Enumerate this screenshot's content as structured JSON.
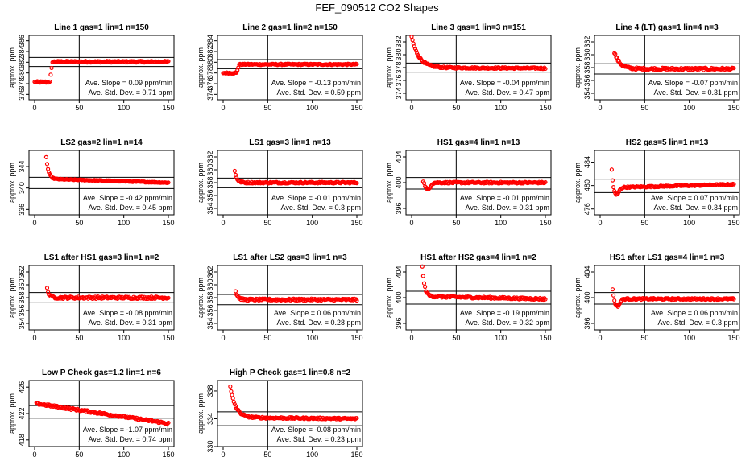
{
  "figure_title": "FEF_090512  CO2 Shapes",
  "colors": {
    "points": "#ff0000",
    "axes": "#000000"
  },
  "chart_data": [
    {
      "type": "scatter",
      "title": "Line 1 gas=1 lin=1 n=150",
      "ylabel": "approx. ppm",
      "xlim": [
        0,
        150
      ],
      "ylim": [
        375,
        387
      ],
      "yticks": [
        376,
        378,
        380,
        382,
        384,
        386
      ],
      "xticks": [
        0,
        50,
        100,
        150
      ],
      "hlines": [
        382.9,
        381.2
      ],
      "vline": 50,
      "slope_label": "Ave. Slope =  0.09  ppm/min",
      "sd_label": "Ave. Std. Dev. =  0.71  ppm",
      "shape": {
        "start": 378.3,
        "jump_at": 20,
        "plateau": 382.1,
        "end": 382.1,
        "noise": 0.15
      }
    },
    {
      "type": "scatter",
      "title": "Line 2 gas=1 lin=2 n=150",
      "ylabel": "approx. ppm",
      "xlim": [
        0,
        150
      ],
      "ylim": [
        373,
        385
      ],
      "yticks": [
        374,
        376,
        378,
        380,
        382,
        384
      ],
      "xticks": [
        0,
        50,
        100,
        150
      ],
      "hlines": [
        380.5,
        378.8
      ],
      "vline": 50,
      "slope_label": "Ave. Slope =  -0.13  ppm/min",
      "sd_label": "Ave. Std. Dev. =  0.59  ppm",
      "shape": {
        "start": 378.0,
        "jump_at": 18,
        "plateau": 379.6,
        "end": 379.6,
        "noise": 0.12
      }
    },
    {
      "type": "scatter",
      "title": "Line 3 gas=1 lin=3 n=151",
      "ylabel": "approx. ppm",
      "xlim": [
        0,
        150
      ],
      "ylim": [
        373,
        383
      ],
      "yticks": [
        374,
        376,
        378,
        380,
        382
      ],
      "xticks": [
        0,
        50,
        100,
        150
      ],
      "hlines": [
        378.7,
        377.3
      ],
      "vline": 50,
      "slope_label": "Ave. Slope =  -0.04  ppm/min",
      "sd_label": "Ave. Std. Dev. =  0.47  ppm",
      "shape": {
        "start": 382.8,
        "decay": 8,
        "plateau": 378.0,
        "end": 377.9,
        "noise": 0.12
      }
    },
    {
      "type": "scatter",
      "title": "Line 4 (LT) gas=1 lin=4 n=3",
      "ylabel": "approx. ppm",
      "xlim": [
        0,
        150
      ],
      "ylim": [
        353,
        363
      ],
      "yticks": [
        354,
        356,
        358,
        360,
        362
      ],
      "xticks": [
        0,
        50,
        100,
        150
      ],
      "hlines": [
        358.6,
        357.0
      ],
      "vline": 50,
      "slope_label": "Ave. Slope =  -0.07  ppm/min",
      "sd_label": "Ave. Std. Dev. =  0.31  ppm",
      "shape": {
        "start": 360.4,
        "decay": 6,
        "plateau": 357.8,
        "end": 357.8,
        "noise": 0.18,
        "startx": 16
      }
    },
    {
      "type": "scatter",
      "title": "LS2 gas=2 lin=1 n=14",
      "ylabel": "approx. ppm",
      "xlim": [
        0,
        150
      ],
      "ylim": [
        335,
        347
      ],
      "yticks": [
        336,
        340,
        344
      ],
      "xticks": [
        0,
        50,
        100,
        150
      ],
      "hlines": [
        342.0,
        339.9
      ],
      "vline": 50,
      "slope_label": "Ave. Slope =  -0.42  ppm/min",
      "sd_label": "Ave. Std. Dev. =  0.45  ppm",
      "shape": {
        "start": 345.8,
        "plateau": 341.7,
        "end": 341.0,
        "noise": 0.08,
        "startx": 13
      }
    },
    {
      "type": "scatter",
      "title": "LS1 gas=3 lin=1 n=13",
      "ylabel": "approx. ppm",
      "xlim": [
        0,
        150
      ],
      "ylim": [
        353,
        363
      ],
      "yticks": [
        354,
        356,
        358,
        360,
        362
      ],
      "xticks": [
        0,
        50,
        100,
        150
      ],
      "hlines": [
        358.7,
        357.2
      ],
      "vline": 50,
      "slope_label": "Ave. Slope =  -0.01  ppm/min",
      "sd_label": "Ave. Std. Dev. =  0.3  ppm",
      "shape": {
        "start": 359.8,
        "plateau": 358.0,
        "end": 358.0,
        "noise": 0.12,
        "startx": 13
      }
    },
    {
      "type": "scatter",
      "title": "HS1 gas=4 lin=1 n=13",
      "ylabel": "approx. ppm",
      "xlim": [
        0,
        150
      ],
      "ylim": [
        395,
        405
      ],
      "yticks": [
        396,
        400,
        404
      ],
      "xticks": [
        0,
        50,
        100,
        150
      ],
      "hlines": [
        400.8,
        399.0
      ],
      "vline": 50,
      "slope_label": "Ave. Slope =  -0.01  ppm/min",
      "sd_label": "Ave. Std. Dev. =  0.31  ppm",
      "shape": {
        "start": 400.5,
        "dip": 398.9,
        "plateau": 400.0,
        "end": 400.0,
        "noise": 0.12,
        "startx": 13
      }
    },
    {
      "type": "scatter",
      "title": "HS2 gas=5 lin=1 n=13",
      "ylabel": "approx. ppm",
      "xlim": [
        0,
        150
      ],
      "ylim": [
        475,
        486
      ],
      "yticks": [
        476,
        480,
        484
      ],
      "xticks": [
        0,
        50,
        100,
        150
      ],
      "hlines": [
        481.1,
        478.8
      ],
      "vline": 50,
      "slope_label": "Ave. Slope =  0.07  ppm/min",
      "sd_label": "Ave. Std. Dev. =  0.34  ppm",
      "shape": {
        "start": 483.0,
        "dip": 478.3,
        "plateau": 479.6,
        "end": 480.2,
        "noise": 0.12,
        "startx": 13
      }
    },
    {
      "type": "scatter",
      "title": "LS1 after HS1 gas=3 lin=1 n=2",
      "ylabel": "approx. ppm",
      "xlim": [
        0,
        150
      ],
      "ylim": [
        353,
        363
      ],
      "yticks": [
        354,
        356,
        358,
        360,
        362
      ],
      "xticks": [
        0,
        50,
        100,
        150
      ],
      "hlines": [
        358.8,
        357.2
      ],
      "vline": 50,
      "slope_label": "Ave. Slope =  -0.08  ppm/min",
      "sd_label": "Ave. Std. Dev. =  0.31  ppm",
      "shape": {
        "start": 359.4,
        "plateau": 358.0,
        "end": 358.0,
        "noise": 0.18,
        "startx": 14
      }
    },
    {
      "type": "scatter",
      "title": "LS1 after LS2 gas=3 lin=1 n=3",
      "ylabel": "approx. ppm",
      "xlim": [
        0,
        150
      ],
      "ylim": [
        353,
        363
      ],
      "yticks": [
        354,
        356,
        358,
        360,
        362
      ],
      "xticks": [
        0,
        50,
        100,
        150
      ],
      "hlines": [
        358.5,
        356.9
      ],
      "vline": 50,
      "slope_label": "Ave. Slope =  0.06  ppm/min",
      "sd_label": "Ave. Std. Dev. =  0.28  ppm",
      "shape": {
        "start": 359.0,
        "plateau": 357.7,
        "end": 357.7,
        "noise": 0.15,
        "startx": 14
      }
    },
    {
      "type": "scatter",
      "title": "HS1 after HS2 gas=4 lin=1 n=2",
      "ylabel": "approx. ppm",
      "xlim": [
        0,
        150
      ],
      "ylim": [
        395,
        405
      ],
      "yticks": [
        396,
        400,
        404
      ],
      "xticks": [
        0,
        50,
        100,
        150
      ],
      "hlines": [
        401.0,
        399.0
      ],
      "vline": 50,
      "slope_label": "Ave. Slope =  -0.19  ppm/min",
      "sd_label": "Ave. Std. Dev. =  0.32  ppm",
      "shape": {
        "start": 404.8,
        "plateau": 400.2,
        "end": 399.8,
        "noise": 0.15,
        "startx": 12
      }
    },
    {
      "type": "scatter",
      "title": "HS1 after LS1 gas=4 lin=1 n=3",
      "ylabel": "approx. ppm",
      "xlim": [
        0,
        150
      ],
      "ylim": [
        395,
        405
      ],
      "yticks": [
        396,
        400,
        404
      ],
      "xticks": [
        0,
        50,
        100,
        150
      ],
      "hlines": [
        400.8,
        399.0
      ],
      "vline": 50,
      "slope_label": "Ave. Slope =  0.06  ppm/min",
      "sd_label": "Ave. Std. Dev. =  0.3  ppm",
      "shape": {
        "start": 401.6,
        "dip": 398.6,
        "plateau": 399.8,
        "end": 399.8,
        "noise": 0.12,
        "startx": 14
      }
    },
    {
      "type": "scatter",
      "title": "Low P Check gas=1.2 lin=1 n=6",
      "ylabel": "approx. ppm",
      "xlim": [
        0,
        150
      ],
      "ylim": [
        417,
        427
      ],
      "yticks": [
        418,
        422,
        426
      ],
      "xticks": [
        0,
        50,
        100,
        150
      ],
      "hlines": [
        423.2,
        421.3
      ],
      "vline": 50,
      "slope_label": "Ave. Slope =  -1.07  ppm/min",
      "sd_label": "Ave. Std. Dev. =  0.74  ppm",
      "shape": {
        "start": 423.5,
        "plateau": 423.5,
        "end": 420.5,
        "noise": 0.15,
        "startx": 2
      }
    },
    {
      "type": "scatter",
      "title": "High P Check gas=1 lin=0.8 n=2",
      "ylabel": "approx. ppm",
      "xlim": [
        0,
        150
      ],
      "ylim": [
        330,
        339.5
      ],
      "yticks": [
        330,
        334,
        338
      ],
      "xticks": [
        0,
        50,
        100,
        150
      ],
      "hlines": [
        335.0,
        333.0
      ],
      "vline": 50,
      "slope_label": "Ave. Slope =  -0.08  ppm/min",
      "sd_label": "Ave. Std. Dev. =  0.23  ppm",
      "shape": {
        "start": 338.6,
        "decay": 6,
        "plateau": 334.2,
        "end": 334.0,
        "noise": 0.12,
        "startx": 8
      }
    }
  ]
}
